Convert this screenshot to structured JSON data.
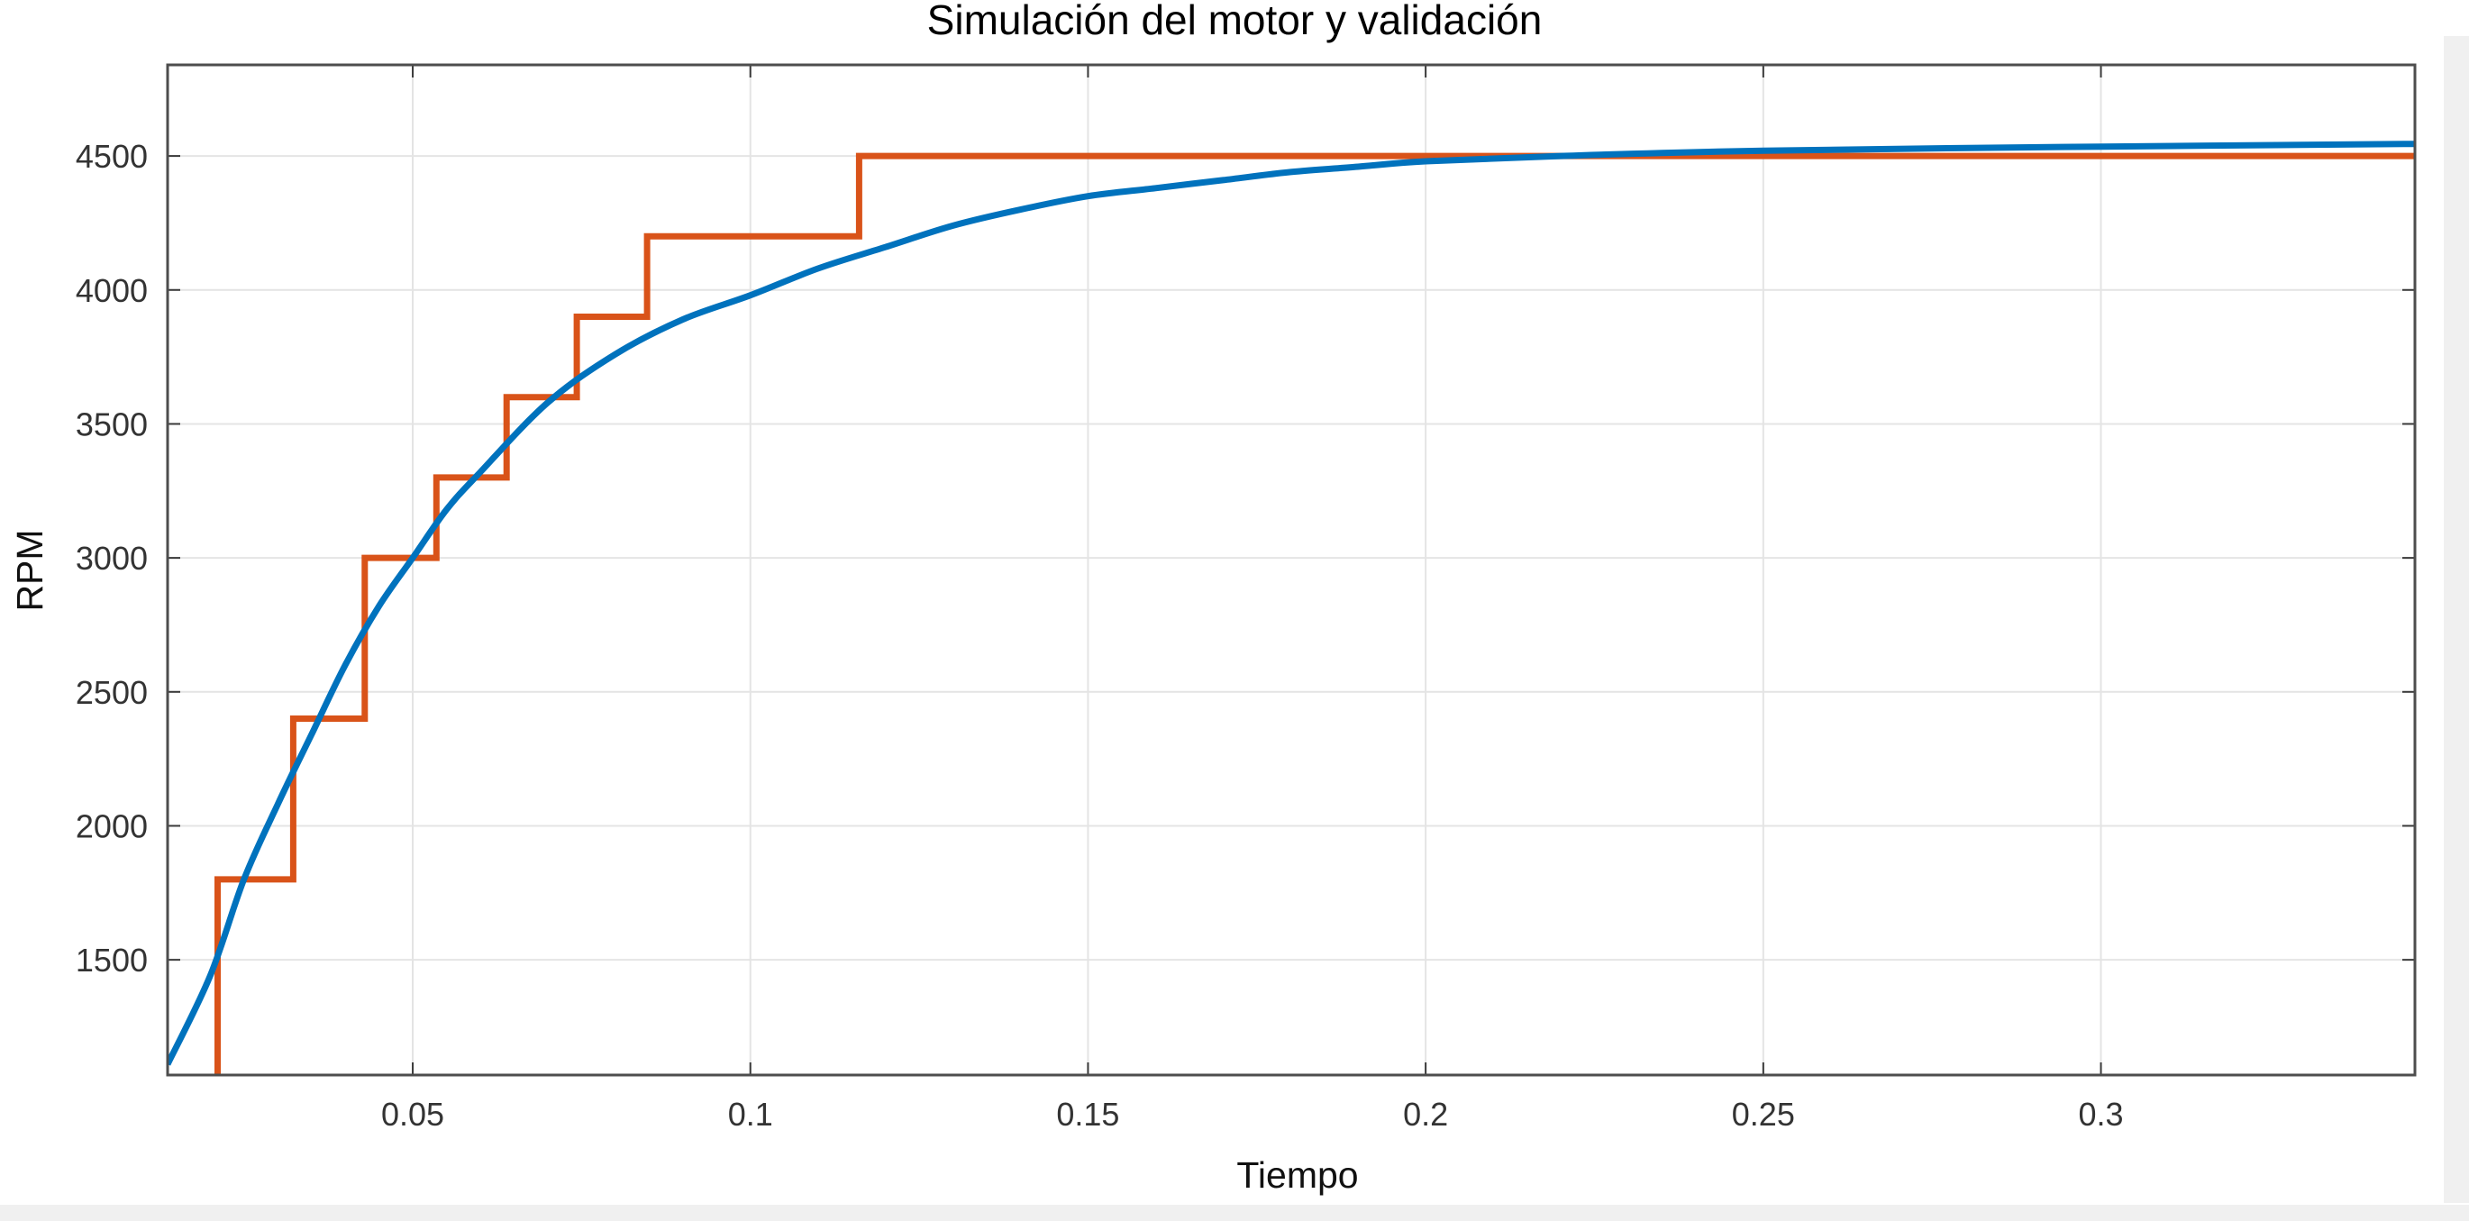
{
  "chart_data": {
    "type": "line",
    "title": "Simulación del motor y validación",
    "xlabel": "Tiempo",
    "ylabel": "RPM",
    "xlim": [
      0.0137,
      0.3465
    ],
    "ylim": [
      1070,
      4840
    ],
    "xticks": [
      0.05,
      0.1,
      0.15,
      0.2,
      0.25,
      0.3
    ],
    "xtick_labels": [
      "0.05",
      "0.1",
      "0.15",
      "0.2",
      "0.25",
      "0.3"
    ],
    "yticks": [
      1500,
      2000,
      2500,
      3000,
      3500,
      4000,
      4500
    ],
    "ytick_labels": [
      "1500",
      "2000",
      "2500",
      "3000",
      "3500",
      "4000",
      "4500"
    ],
    "grid": true,
    "legend": "none",
    "series": [
      {
        "color": "#d95319",
        "style": "step",
        "points": [
          [
            0.0211,
            1070
          ],
          [
            0.0211,
            1800
          ],
          [
            0.0323,
            1800
          ],
          [
            0.0323,
            2400
          ],
          [
            0.0429,
            2400
          ],
          [
            0.0429,
            3000
          ],
          [
            0.0535,
            3000
          ],
          [
            0.0535,
            3300
          ],
          [
            0.0639,
            3300
          ],
          [
            0.0639,
            3600
          ],
          [
            0.0743,
            3600
          ],
          [
            0.0743,
            3900
          ],
          [
            0.0847,
            3900
          ],
          [
            0.0847,
            4200
          ],
          [
            0.1161,
            4200
          ],
          [
            0.1161,
            4500
          ],
          [
            0.3465,
            4500
          ]
        ]
      },
      {
        "color": "#0072bd",
        "style": "smooth",
        "points": [
          [
            0.0137,
            1110
          ],
          [
            0.02,
            1440
          ],
          [
            0.025,
            1800
          ],
          [
            0.03,
            2080
          ],
          [
            0.035,
            2340
          ],
          [
            0.04,
            2600
          ],
          [
            0.045,
            2820
          ],
          [
            0.05,
            3000
          ],
          [
            0.055,
            3180
          ],
          [
            0.06,
            3320
          ],
          [
            0.07,
            3580
          ],
          [
            0.08,
            3760
          ],
          [
            0.09,
            3890
          ],
          [
            0.1,
            3980
          ],
          [
            0.11,
            4080
          ],
          [
            0.12,
            4160
          ],
          [
            0.13,
            4240
          ],
          [
            0.14,
            4300
          ],
          [
            0.15,
            4350
          ],
          [
            0.16,
            4380
          ],
          [
            0.17,
            4410
          ],
          [
            0.18,
            4440
          ],
          [
            0.19,
            4460
          ],
          [
            0.2,
            4480
          ],
          [
            0.22,
            4500
          ],
          [
            0.25,
            4520
          ],
          [
            0.3,
            4535
          ],
          [
            0.3465,
            4545
          ]
        ]
      }
    ]
  },
  "colors": {
    "background": "#ffffff",
    "axes_frame": "#4d4d4d",
    "grid": "#e4e4e4",
    "side_strip": "#f0f0f0"
  }
}
